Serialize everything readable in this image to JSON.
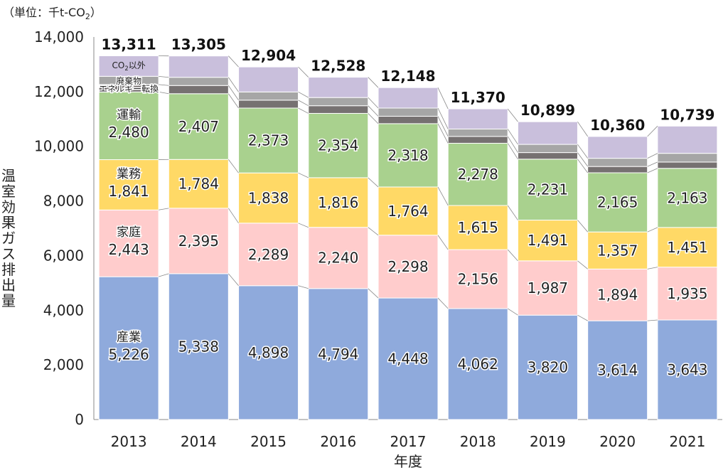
{
  "chart_data": {
    "type": "bar",
    "stacked": true,
    "unit_label": {
      "prefix": "（単位：千t-CO",
      "sub": "2",
      "suffix": "）"
    },
    "xlabel": "年度",
    "ylabel": "温室効果ガス排出量",
    "ylim": [
      0,
      14000
    ],
    "yticks": [
      0,
      2000,
      4000,
      6000,
      8000,
      10000,
      12000,
      14000
    ],
    "ytick_labels": [
      "0",
      "2,000",
      "4,000",
      "6,000",
      "8,000",
      "10,000",
      "12,000",
      "14,000"
    ],
    "categories": [
      "2013",
      "2014",
      "2015",
      "2016",
      "2017",
      "2018",
      "2019",
      "2020",
      "2021"
    ],
    "totals": [
      13311,
      13305,
      12904,
      12528,
      12148,
      11370,
      10899,
      10360,
      10739
    ],
    "total_labels": [
      "13,311",
      "13,305",
      "12,904",
      "12,528",
      "12,148",
      "11,370",
      "10,899",
      "10,360",
      "10,739"
    ],
    "series": [
      {
        "name": "産業",
        "color": "#8faadc",
        "values": [
          5226,
          5338,
          4898,
          4794,
          4448,
          4062,
          3820,
          3614,
          3643
        ],
        "labels": [
          "5,226",
          "5,338",
          "4,898",
          "4,794",
          "4,448",
          "4,062",
          "3,820",
          "3,614",
          "3,643"
        ]
      },
      {
        "name": "家庭",
        "color": "#ffcccc",
        "values": [
          2443,
          2395,
          2289,
          2240,
          2298,
          2156,
          1987,
          1894,
          1935
        ],
        "labels": [
          "2,443",
          "2,395",
          "2,289",
          "2,240",
          "2,298",
          "2,156",
          "1,987",
          "1,894",
          "1,935"
        ]
      },
      {
        "name": "業務",
        "color": "#ffd966",
        "values": [
          1841,
          1784,
          1838,
          1816,
          1764,
          1615,
          1491,
          1357,
          1451
        ],
        "labels": [
          "1,841",
          "1,784",
          "1,838",
          "1,816",
          "1,764",
          "1,615",
          "1,491",
          "1,357",
          "1,451"
        ]
      },
      {
        "name": "運輸",
        "color": "#a9d18e",
        "values": [
          2480,
          2407,
          2373,
          2354,
          2318,
          2278,
          2231,
          2165,
          2163
        ],
        "labels": [
          "2,480",
          "2,407",
          "2,373",
          "2,354",
          "2,318",
          "2,278",
          "2,231",
          "2,165",
          "2,163"
        ]
      },
      {
        "name": "エネルギー転換",
        "color": "#767171",
        "values": [
          270,
          300,
          290,
          280,
          270,
          250,
          240,
          230,
          230
        ]
      },
      {
        "name": "廃棄物",
        "color": "#a6a6a6",
        "values": [
          300,
          300,
          300,
          300,
          300,
          270,
          300,
          300,
          320
        ]
      },
      {
        "name": "CO2以外",
        "color": "#c9bfdc",
        "values": [
          751,
          781,
          916,
          744,
          750,
          739,
          830,
          800,
          997
        ]
      }
    ],
    "inline_labels": {
      "産業": "産業",
      "家庭": "家庭",
      "業務": "業務",
      "運輸": "運輸",
      "エネルギー転換": "エネルギー転換",
      "廃棄物": "廃棄物",
      "CO2以外": {
        "prefix": "CO",
        "sub": "2",
        "suffix": "以外"
      }
    },
    "grid": false,
    "legend": "none"
  }
}
